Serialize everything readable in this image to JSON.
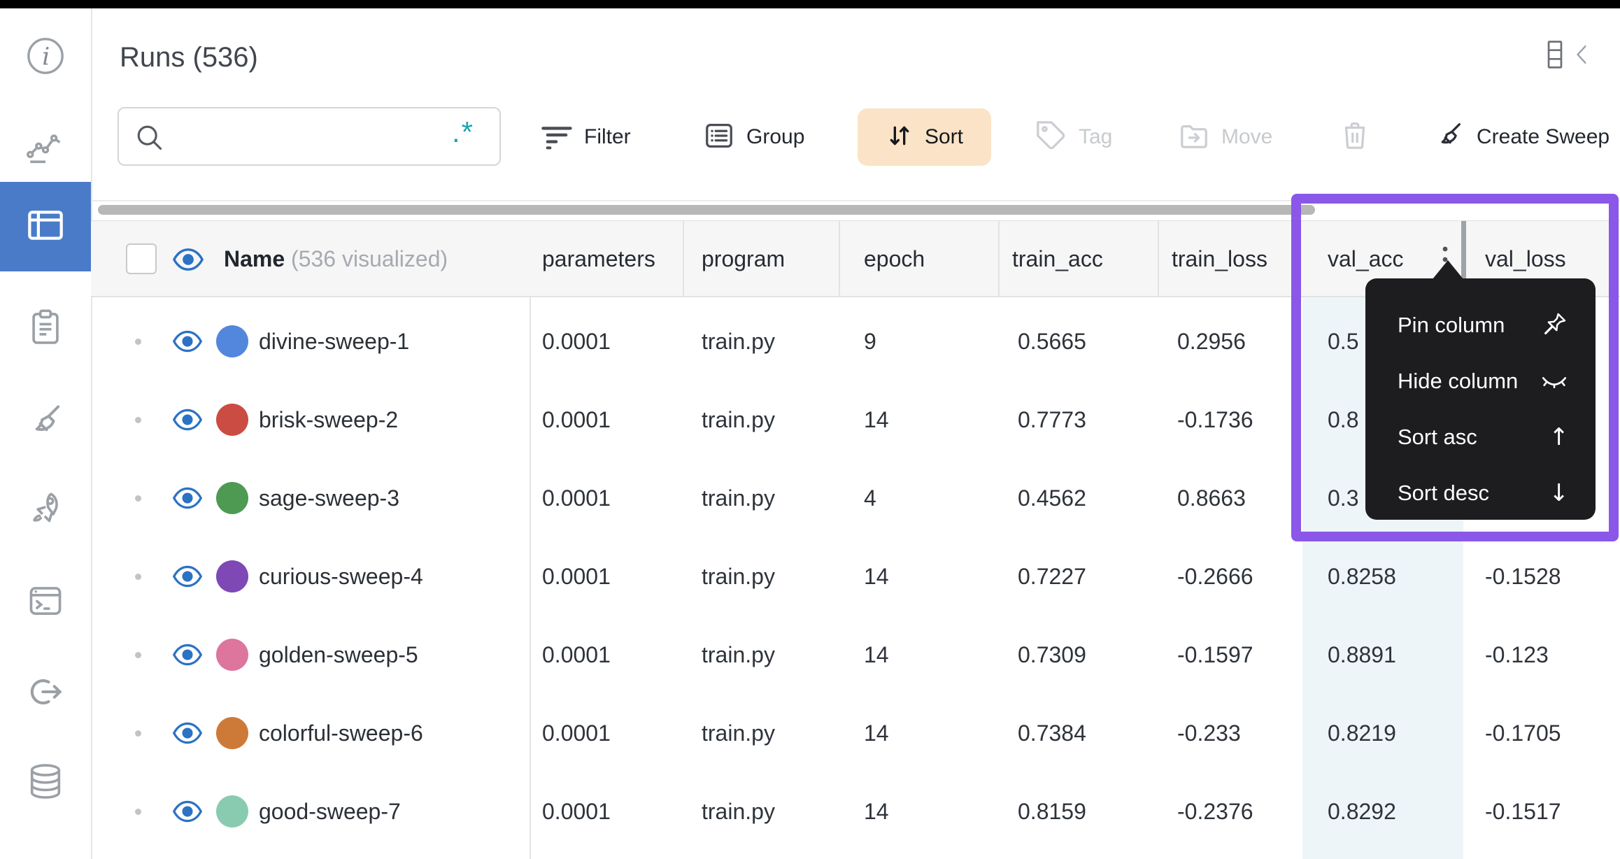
{
  "page": {
    "title": "Runs (536)"
  },
  "sidebar": {
    "items": [
      {
        "icon": "info-icon"
      },
      {
        "icon": "line-chart-icon"
      },
      {
        "icon": "table-icon",
        "selected": true
      },
      {
        "icon": "clipboard-icon"
      },
      {
        "icon": "broom-icon"
      },
      {
        "icon": "rocket-icon"
      },
      {
        "icon": "terminal-icon"
      },
      {
        "icon": "link-out-icon"
      },
      {
        "icon": "database-icon"
      }
    ]
  },
  "toolbar": {
    "search": {
      "placeholder": "",
      "value": "",
      "regex_glyph": ".*",
      "icon": "search-icon"
    },
    "filter": {
      "label": "Filter",
      "icon": "filter-icon",
      "state": "enabled"
    },
    "group": {
      "label": "Group",
      "icon": "group-icon",
      "state": "enabled"
    },
    "sort": {
      "label": "Sort",
      "icon": "sort-arrows-icon",
      "state": "active"
    },
    "tag": {
      "label": "Tag",
      "icon": "tag-icon",
      "state": "disabled"
    },
    "move": {
      "label": "Move",
      "icon": "move-folder-icon",
      "state": "disabled"
    },
    "trash": {
      "icon": "trash-icon",
      "state": "disabled"
    },
    "create_sweep": {
      "label": "Create Sweep",
      "icon": "broom-icon",
      "state": "enabled"
    }
  },
  "top_right": {
    "icons": [
      "column-settings-icon",
      "collapse-panel-icon"
    ]
  },
  "table": {
    "name_header": "Name",
    "name_annotation": "(536 visualized)",
    "columns": [
      "parameters",
      "program",
      "epoch",
      "train_acc",
      "train_loss",
      "val_acc",
      "val_loss"
    ],
    "rows": [
      {
        "name": "divine-sweep-1",
        "color": "#5387dd",
        "parameters": "0.0001",
        "program": "train.py",
        "epoch": "9",
        "train_acc": "0.5665",
        "train_loss": "0.2956",
        "val_acc": "0.5",
        "val_loss": ""
      },
      {
        "name": "brisk-sweep-2",
        "color": "#cb4c43",
        "parameters": "0.0001",
        "program": "train.py",
        "epoch": "14",
        "train_acc": "0.7773",
        "train_loss": "-0.1736",
        "val_acc": "0.8",
        "val_loss": ""
      },
      {
        "name": "sage-sweep-3",
        "color": "#4e9a53",
        "parameters": "0.0001",
        "program": "train.py",
        "epoch": "4",
        "train_acc": "0.4562",
        "train_loss": "0.8663",
        "val_acc": "0.3",
        "val_loss": ""
      },
      {
        "name": "curious-sweep-4",
        "color": "#7e48b5",
        "parameters": "0.0001",
        "program": "train.py",
        "epoch": "14",
        "train_acc": "0.7227",
        "train_loss": "-0.2666",
        "val_acc": "0.8258",
        "val_loss": "-0.1528"
      },
      {
        "name": "golden-sweep-5",
        "color": "#dd759d",
        "parameters": "0.0001",
        "program": "train.py",
        "epoch": "14",
        "train_acc": "0.7309",
        "train_loss": "-0.1597",
        "val_acc": "0.8891",
        "val_loss": "-0.123"
      },
      {
        "name": "colorful-sweep-6",
        "color": "#cd7a39",
        "parameters": "0.0001",
        "program": "train.py",
        "epoch": "14",
        "train_acc": "0.7384",
        "train_loss": "-0.233",
        "val_acc": "0.8219",
        "val_loss": "-0.1705"
      },
      {
        "name": "good-sweep-7",
        "color": "#89cbb1",
        "parameters": "0.0001",
        "program": "train.py",
        "epoch": "14",
        "train_acc": "0.8159",
        "train_loss": "-0.2376",
        "val_acc": "0.8292",
        "val_loss": "-0.1517"
      }
    ]
  },
  "column_menu": {
    "target_column": "val_acc",
    "items": [
      {
        "label": "Pin column",
        "icon": "pin-icon"
      },
      {
        "label": "Hide column",
        "icon": "eye-closed-icon"
      },
      {
        "label": "Sort asc",
        "icon": "arrow-up-icon",
        "glyph": "↑"
      },
      {
        "label": "Sort desc",
        "icon": "arrow-down-icon",
        "glyph": "↓"
      }
    ]
  },
  "colors": {
    "sidebar_selected": "#4a7bc9",
    "sort_button_bg": "#fae3c6",
    "highlight_box": "#8a57e8",
    "val_acc_tint": "#edf5f8",
    "menu_bg": "#1d1d1f",
    "eye_icon": "#2b72c4",
    "regex_icon": "#18a5b5"
  }
}
